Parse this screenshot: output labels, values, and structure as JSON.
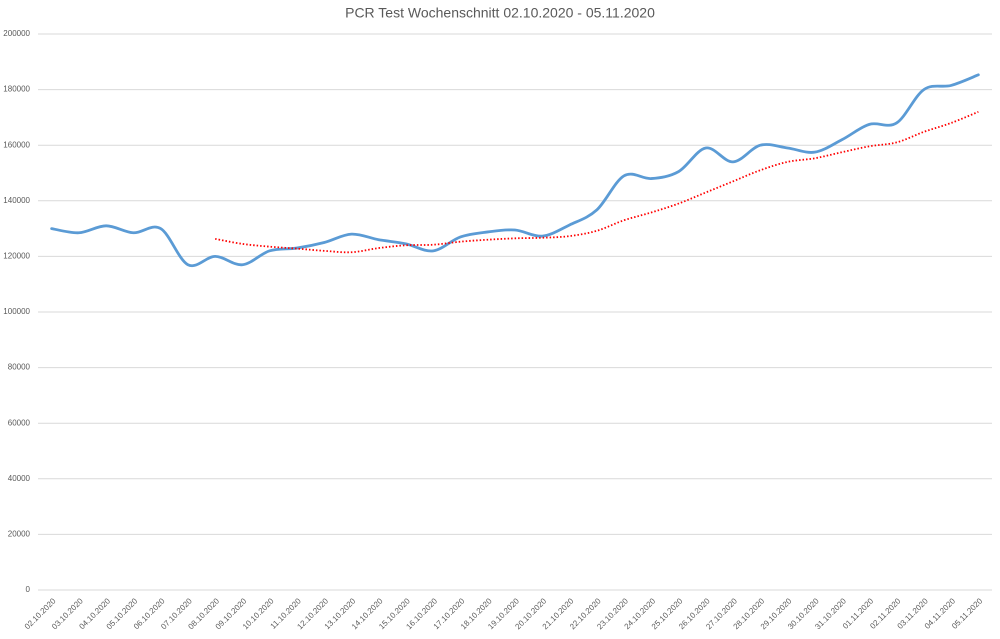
{
  "chart_data": {
    "type": "line",
    "title": "PCR Test Wochenschnitt  02.10.2020 - 05.11.2020",
    "categories": [
      "02.10.2020",
      "03.10.2020",
      "04.10.2020",
      "05.10.2020",
      "06.10.2020",
      "07.10.2020",
      "08.10.2020",
      "09.10.2020",
      "10.10.2020",
      "11.10.2020",
      "12.10.2020",
      "13.10.2020",
      "14.10.2020",
      "15.10.2020",
      "16.10.2020",
      "17.10.2020",
      "18.10.2020",
      "19.10.2020",
      "20.10.2020",
      "21.10.2020",
      "22.10.2020",
      "23.10.2020",
      "24.10.2020",
      "25.10.2020",
      "26.10.2020",
      "27.10.2020",
      "28.10.2020",
      "29.10.2020",
      "30.10.2020",
      "31.10.2020",
      "01.11.2020",
      "02.11.2020",
      "03.11.2020",
      "04.11.2020",
      "05.11.2020"
    ],
    "series": [
      {
        "color": "#5b9bd5",
        "style": "solid",
        "values": [
          130000,
          128500,
          131000,
          128500,
          130000,
          117000,
          120000,
          117000,
          122000,
          123000,
          125000,
          128000,
          126000,
          124500,
          122000,
          127000,
          128800,
          129500,
          127300,
          131300,
          136700,
          149000,
          148000,
          150500,
          159000,
          154000,
          160000,
          159000,
          157500,
          162000,
          167500,
          168000,
          180000,
          181500,
          185300
        ]
      },
      {
        "color": "#ff0000",
        "style": "dotted",
        "values": [
          null,
          null,
          null,
          null,
          null,
          null,
          126300,
          124500,
          123500,
          122800,
          122000,
          121500,
          123000,
          124000,
          124200,
          125300,
          126000,
          126500,
          126700,
          127300,
          129200,
          133000,
          135800,
          139000,
          143000,
          147000,
          151000,
          154000,
          155300,
          157500,
          159600,
          161000,
          164800,
          168000,
          172000
        ]
      }
    ],
    "ylim": [
      0,
      200000
    ],
    "yticks": [
      0,
      20000,
      40000,
      60000,
      80000,
      100000,
      120000,
      140000,
      160000,
      180000,
      200000
    ],
    "grid": true
  }
}
